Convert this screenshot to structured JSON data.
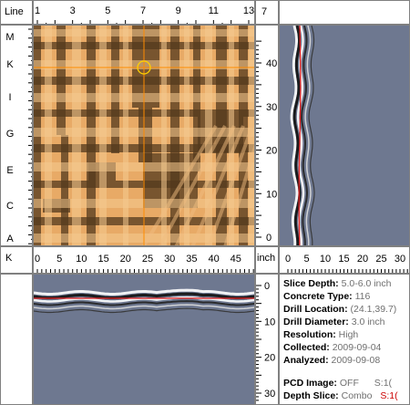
{
  "corner": {
    "top_left": "Line",
    "top_right_value": "7",
    "mid_left": "K",
    "mid_right": "inch"
  },
  "top_axis": {
    "labels": [
      "1",
      "3",
      "5",
      "7",
      "9",
      "11",
      "13"
    ]
  },
  "left_axis": {
    "labels": [
      "M",
      "K",
      "I",
      "G",
      "E",
      "C",
      "A"
    ]
  },
  "depth_axis_right": {
    "labels": [
      "40",
      "30",
      "20",
      "10",
      "0"
    ]
  },
  "inch_axis_horizontal": {
    "labels": [
      "0",
      "5",
      "10",
      "15",
      "20",
      "25",
      "30",
      "35",
      "40",
      "45"
    ]
  },
  "side_depth_axis": {
    "labels": [
      "0",
      "5",
      "10",
      "15",
      "20",
      "25",
      "30"
    ]
  },
  "bottom_depth_axis": {
    "labels": [
      "0",
      "10",
      "20",
      "30"
    ]
  },
  "info": {
    "slice_depth_label": "Slice Depth:",
    "slice_depth_value": "5.0-6.0 inch",
    "concrete_type_label": "Concrete Type:",
    "concrete_type_value": "116",
    "drill_location_label": "Drill Location:",
    "drill_location_value": "(24.1,39.7)",
    "drill_diameter_label": "Drill Diameter:",
    "drill_diameter_value": "3.0 inch",
    "resolution_label": "Resolution:",
    "resolution_value": "High",
    "collected_label": "Collected:",
    "collected_value": "2009-09-04",
    "analyzed_label": "Analyzed:",
    "analyzed_value": "2009-09-08",
    "pcd_label": "PCD Image:",
    "pcd_value": "OFF",
    "pcd_extra": "S:1(",
    "depth_slice_label": "Depth Slice:",
    "depth_slice_value": "Combo",
    "depth_slice_extra": "S:1("
  },
  "colors": {
    "scan_bg": "#e8aa66",
    "scan_dark": "#3a2510",
    "radar_bg": "#6e7890",
    "crosshair": "#ff8c00",
    "trace": "#e02020"
  }
}
